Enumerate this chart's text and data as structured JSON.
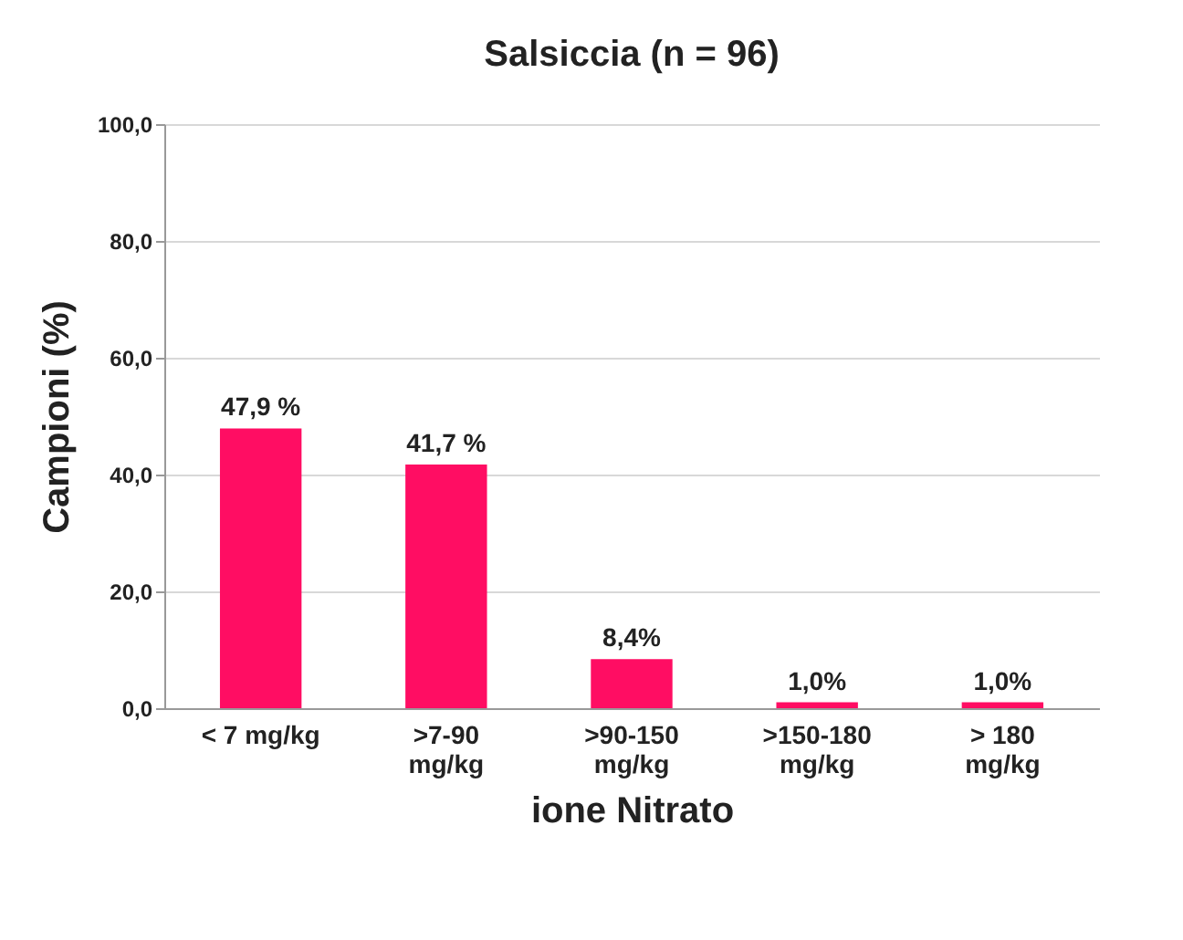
{
  "chart_data": {
    "type": "bar",
    "title": "Salsiccia (n = 96)",
    "xlabel": "ione Nitrato",
    "ylabel": "Campioni (%)",
    "categories": [
      "< 7 mg/kg",
      ">7-90\nmg/kg",
      ">90-150\nmg/kg",
      ">150-180\nmg/kg",
      "> 180\nmg/kg"
    ],
    "values": [
      47.9,
      41.7,
      8.4,
      1.0,
      1.0
    ],
    "value_labels": [
      "47,9 %",
      "41,7 %",
      "8,4%",
      "1,0%",
      "1,0%"
    ],
    "color": "#ff0d63",
    "ylim": [
      0,
      100
    ],
    "yticks": [
      {
        "value": 0,
        "label": "0,0"
      },
      {
        "value": 20,
        "label": "20,0"
      },
      {
        "value": 40,
        "label": "40,0"
      },
      {
        "value": 60,
        "label": "60,0"
      },
      {
        "value": 80,
        "label": "80,0"
      },
      {
        "value": 100,
        "label": "100,0"
      }
    ],
    "grid": "y"
  }
}
